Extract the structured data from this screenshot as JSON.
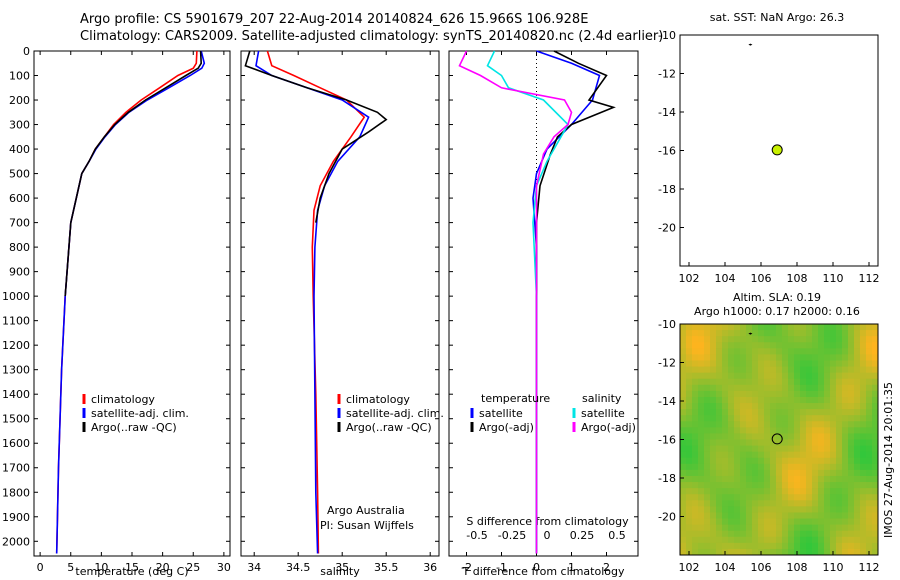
{
  "header": {
    "line1": "Argo profile: CS 5901679_207 22-Aug-2014 20140824_626 15.966S 106.928E",
    "line2": "Climatology: CARS2009. Satellite-adjusted climatology: synTS_20140820.nc (2.4d earlier)"
  },
  "stamp": "IMOS 27-Aug-2014 20:01:35",
  "colors": {
    "climatology": "#ff0000",
    "satellite_adj": "#0000ff",
    "argo": "#000000",
    "satellite_sal": "#00e5e5",
    "argo_adj_sal": "#ff00ff",
    "argo_point": "#c8f000"
  },
  "chart_data": [
    {
      "type": "line",
      "xlabel": "temperature (deg C)",
      "ylabel": "",
      "xlim": [
        -1,
        31
      ],
      "ylim": [
        2060,
        0
      ],
      "xticks": [
        0,
        5,
        10,
        15,
        20,
        25,
        30
      ],
      "yticks": [
        0,
        100,
        200,
        300,
        400,
        500,
        600,
        700,
        800,
        900,
        1000,
        1100,
        1200,
        1300,
        1400,
        1500,
        1600,
        1700,
        1800,
        1900,
        2000
      ],
      "legend": [
        "climatology",
        "satellite-adj. clim.",
        "Argo(..raw -QC)"
      ],
      "series": [
        {
          "name": "climatology",
          "color": "#ff0000",
          "x": [
            25.6,
            25.5,
            25.0,
            22.5,
            19.5,
            16.5,
            14.0,
            12.0,
            10.5,
            9.0,
            8.0,
            6.8,
            5.0,
            4.1,
            3.5,
            3.0,
            2.7
          ],
          "y": [
            0,
            50,
            70,
            100,
            150,
            200,
            250,
            300,
            350,
            400,
            450,
            500,
            700,
            1000,
            1300,
            1700,
            2050
          ]
        },
        {
          "name": "satellite-adj. clim.",
          "color": "#0000ff",
          "x": [
            26.3,
            26.8,
            26.4,
            24.5,
            21.0,
            17.5,
            14.5,
            12.3,
            10.6,
            9.1,
            8.0,
            6.8,
            5.0,
            4.1,
            3.5,
            3.0,
            2.7
          ],
          "y": [
            0,
            50,
            70,
            100,
            150,
            200,
            250,
            300,
            350,
            400,
            450,
            500,
            700,
            1000,
            1300,
            1700,
            2050
          ]
        },
        {
          "name": "Argo(..raw -QC)",
          "color": "#000000",
          "x": [
            26.2,
            26.3,
            25.8,
            23.8,
            20.5,
            17.2,
            14.4,
            12.2,
            10.5,
            9.0,
            8.0,
            6.8,
            5.0,
            4.1
          ],
          "y": [
            0,
            50,
            70,
            100,
            150,
            200,
            250,
            300,
            350,
            400,
            450,
            500,
            700,
            1000
          ]
        }
      ]
    },
    {
      "type": "line",
      "xlabel": "salinity",
      "ylabel": "",
      "xlim": [
        33.85,
        36.1
      ],
      "ylim": [
        2060,
        0
      ],
      "xticks": [
        34,
        34.5,
        35,
        35.5,
        36
      ],
      "xtick_labels": [
        "34",
        "34.5",
        "35",
        "35.5",
        "36"
      ],
      "legend": [
        "climatology",
        "satellite-adj. clim.",
        "Argo(..raw -QC)"
      ],
      "annotations": [
        "Argo Australia",
        "PI: Susan Wijffels"
      ],
      "series": [
        {
          "name": "climatology",
          "color": "#ff0000",
          "x": [
            34.15,
            34.2,
            34.45,
            34.75,
            35.05,
            35.25,
            35.1,
            34.9,
            34.75,
            34.68,
            34.66,
            34.67,
            34.7,
            34.72,
            34.73
          ],
          "y": [
            0,
            60,
            100,
            150,
            200,
            270,
            350,
            450,
            550,
            650,
            800,
            1000,
            1400,
            1800,
            2050
          ]
        },
        {
          "name": "satellite-adj. clim.",
          "color": "#0000ff",
          "x": [
            34.05,
            34.02,
            34.2,
            34.6,
            35.0,
            35.3,
            35.2,
            34.95,
            34.8,
            34.72,
            34.69,
            34.68,
            34.69,
            34.7,
            34.72
          ],
          "y": [
            0,
            60,
            100,
            150,
            200,
            270,
            350,
            450,
            550,
            650,
            800,
            1000,
            1400,
            1800,
            2050
          ]
        },
        {
          "name": "Argo(..raw -QC)",
          "color": "#000000",
          "x": [
            33.95,
            33.9,
            34.2,
            34.6,
            35.05,
            35.4,
            35.5,
            35.3,
            35.0,
            34.85,
            34.75,
            34.7
          ],
          "y": [
            0,
            60,
            100,
            150,
            200,
            250,
            280,
            330,
            400,
            500,
            600,
            700
          ]
        }
      ]
    },
    {
      "type": "line",
      "xlabel": "T difference from climatology",
      "top_label": "S difference from climatology",
      "xlim": [
        -2.5,
        2.9
      ],
      "ylim": [
        2060,
        0
      ],
      "xticks": [
        -2,
        -1,
        0,
        1,
        2
      ],
      "top_ticks": [
        -0.5,
        -0.25,
        0,
        0.25,
        0.5
      ],
      "top_tick_labels": [
        "-0.5",
        "-0.25",
        "0",
        "0.25",
        "0.5"
      ],
      "legend_temperature": [
        "temperature",
        "satellite",
        "Argo(-adj)"
      ],
      "legend_salinity": [
        "salinity",
        "satellite",
        "Argo(-adj)"
      ],
      "series": [
        {
          "name": "satellite",
          "color": "#0000ff",
          "x": [
            0.0,
            1.0,
            1.8,
            1.6,
            1.0,
            0.3,
            0.0,
            -0.1,
            0.0,
            0.0,
            0.0,
            0.0
          ],
          "y": [
            0,
            50,
            100,
            200,
            300,
            400,
            500,
            600,
            800,
            1000,
            1500,
            2050
          ]
        },
        {
          "name": "Argo(-adj)",
          "color": "#000000",
          "x": [
            0.5,
            1.2,
            2.0,
            1.5,
            2.2,
            1.0,
            0.6,
            0.4,
            0.1,
            0.0,
            0.0,
            0.0
          ],
          "y": [
            0,
            50,
            100,
            200,
            230,
            300,
            350,
            420,
            550,
            700,
            1000,
            2050
          ]
        },
        {
          "name": "satellite",
          "color": "#00e5e5",
          "x": [
            -1.2,
            -1.4,
            -1.0,
            -0.8,
            0.2,
            0.9,
            0.7,
            0.3,
            0.0,
            -0.1,
            0.0,
            0.0
          ],
          "y": [
            0,
            60,
            100,
            150,
            200,
            300,
            350,
            450,
            550,
            700,
            1000,
            2050
          ]
        },
        {
          "name": "Argo(-adj)",
          "color": "#ff00ff",
          "x": [
            -2.0,
            -2.2,
            -1.6,
            -1.0,
            0.8,
            1.0,
            0.9,
            0.5,
            0.2,
            0.0,
            0.0,
            0.0
          ],
          "y": [
            0,
            60,
            100,
            150,
            200,
            250,
            300,
            350,
            420,
            550,
            800,
            2050
          ]
        }
      ]
    },
    {
      "type": "scatter",
      "title": "sat. SST: NaN Argo: 26.3",
      "xlim": [
        101.5,
        112.5
      ],
      "ylim": [
        -22,
        -10
      ],
      "xticks": [
        102,
        104,
        106,
        108,
        110,
        112
      ],
      "yticks": [
        -10,
        -12,
        -14,
        -16,
        -18,
        -20
      ],
      "points": [
        {
          "x": 106.9,
          "y": -15.97
        }
      ]
    },
    {
      "type": "heatmap",
      "title_line1": "Altim. SLA: 0.19",
      "title_line2": "Argo h1000: 0.17 h2000: 0.16",
      "xlim": [
        101.5,
        112.5
      ],
      "ylim": [
        -22,
        -10
      ],
      "xticks": [
        102,
        104,
        106,
        108,
        110,
        112
      ],
      "yticks": [
        -10,
        -12,
        -14,
        -16,
        -18,
        -20
      ],
      "points": [
        {
          "x": 106.9,
          "y": -15.97
        }
      ]
    }
  ]
}
